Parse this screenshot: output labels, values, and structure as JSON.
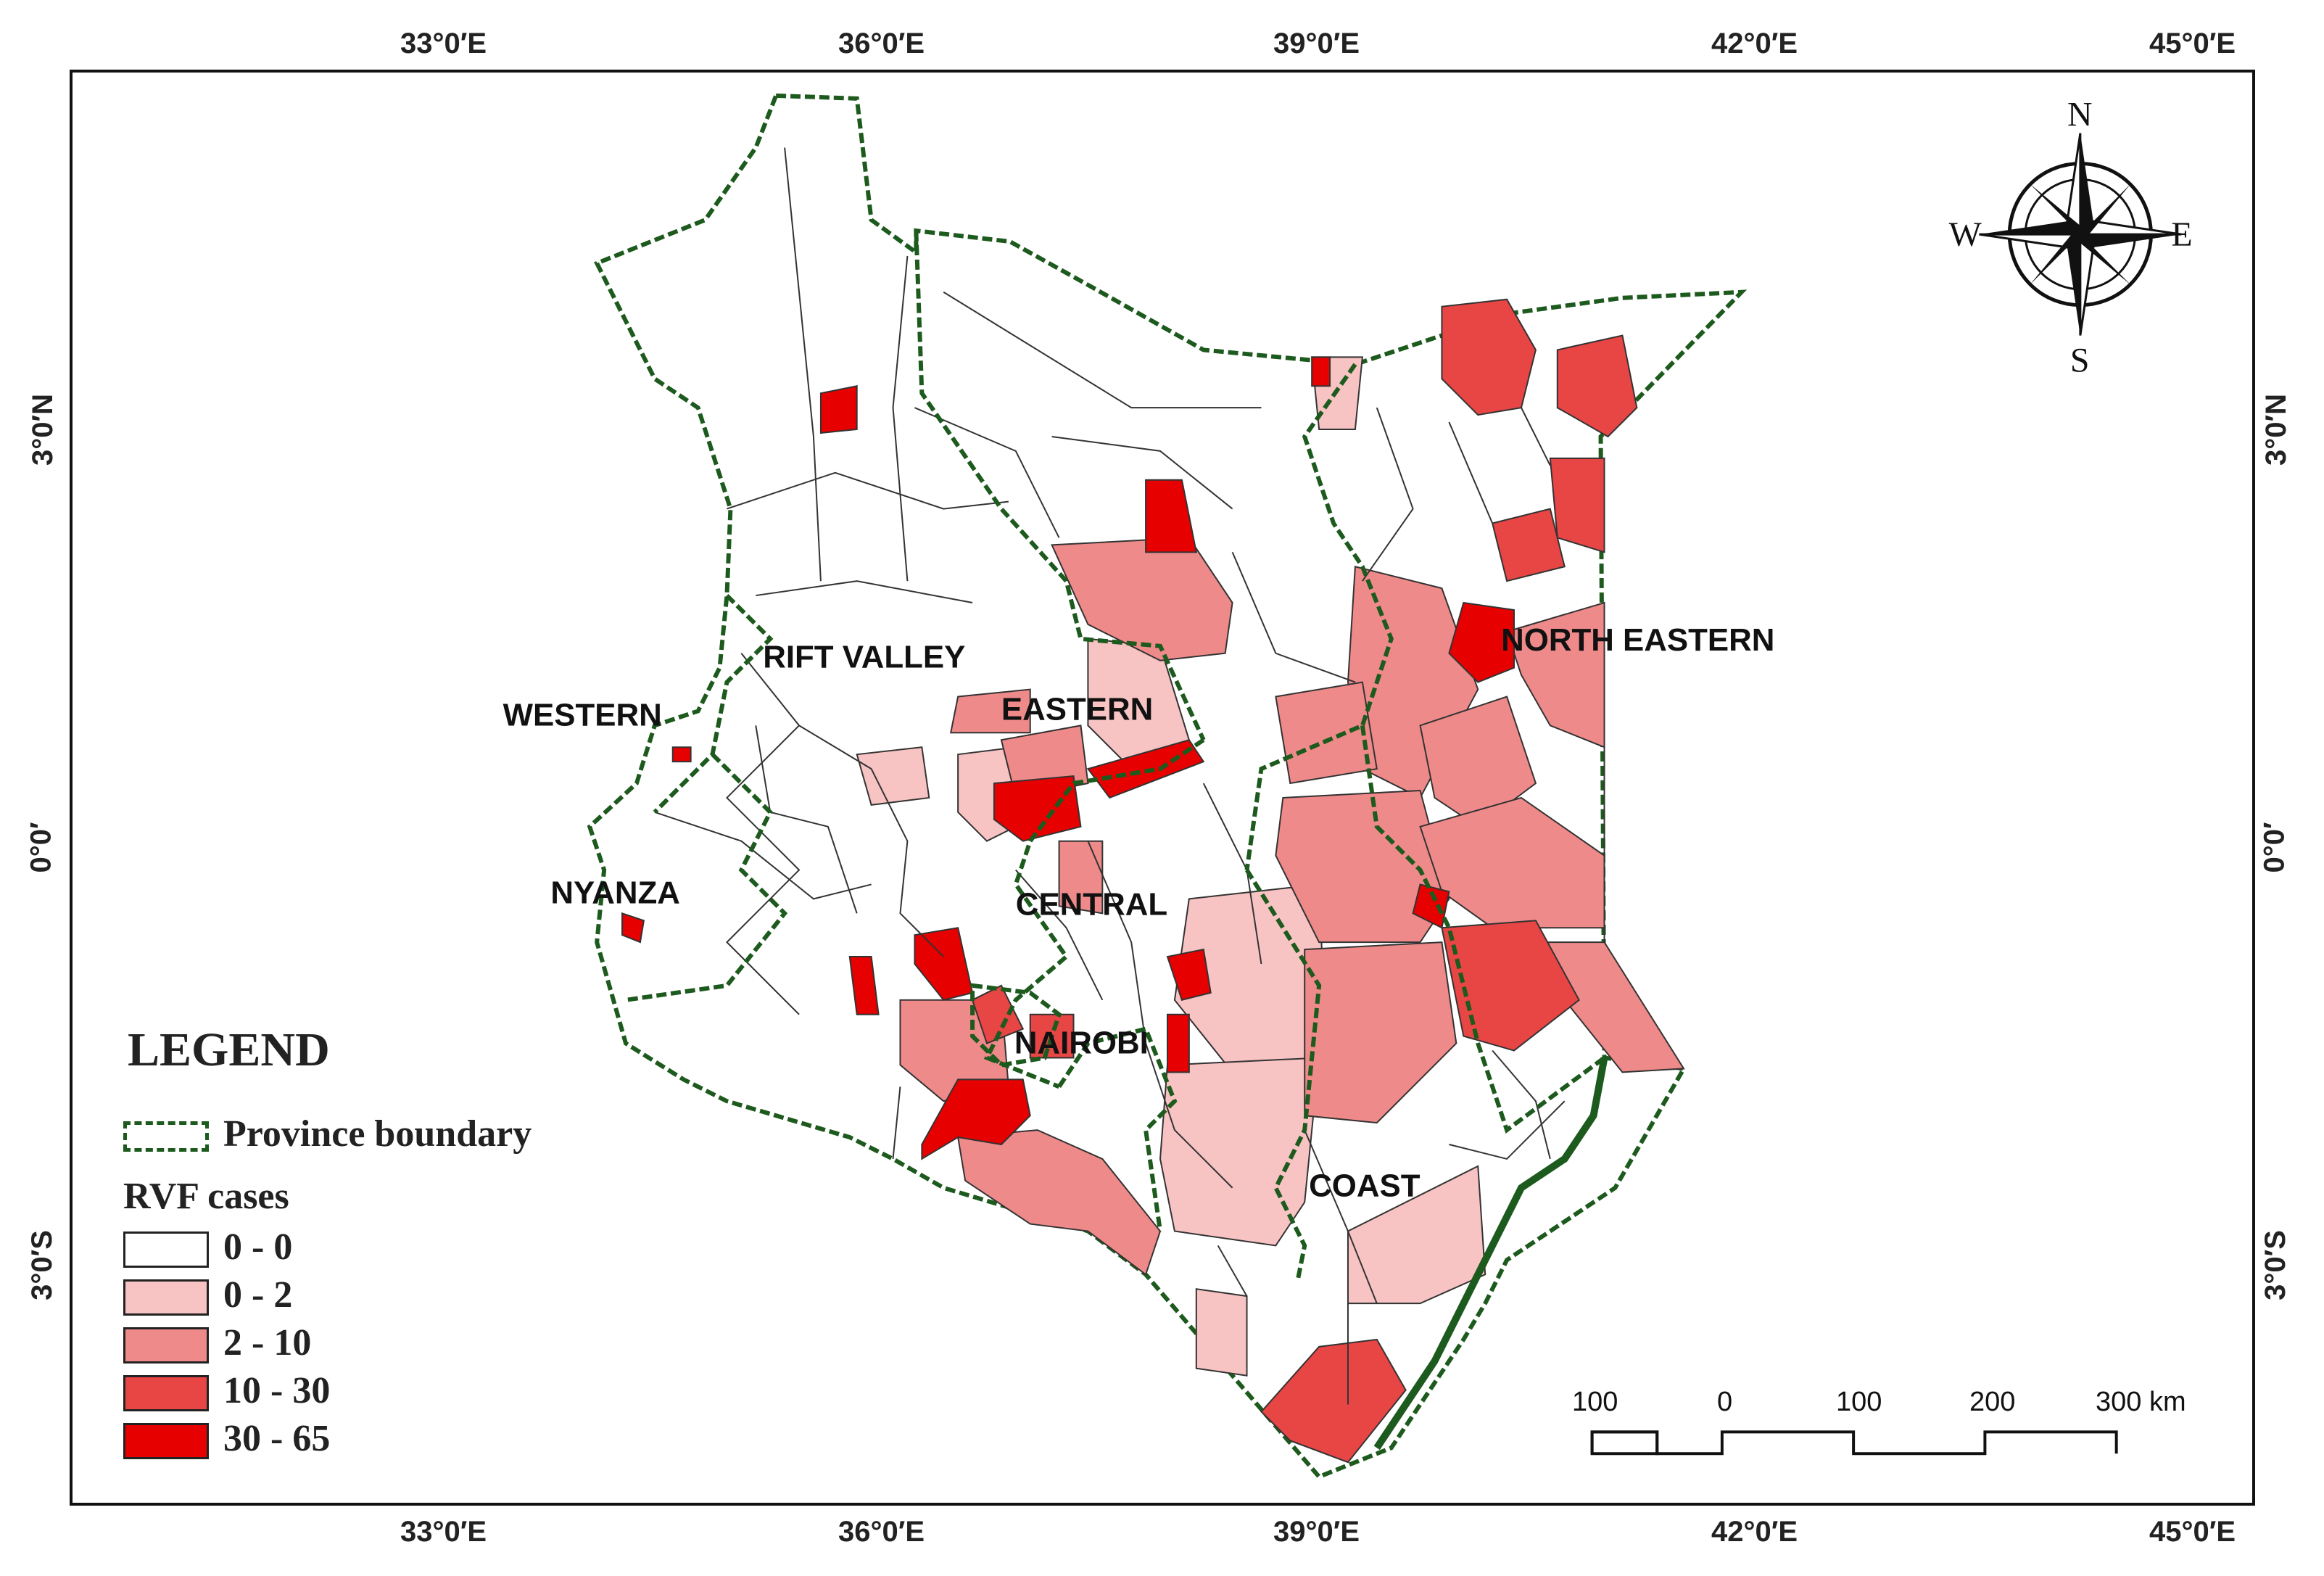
{
  "axis_labels": {
    "lon": [
      "33°0′E",
      "36°0′E",
      "39°0′E",
      "42°0′E",
      "45°0′E"
    ],
    "lat": [
      "3°0′N",
      "0°0′",
      "3°0′S"
    ]
  },
  "compass": {
    "north": "N",
    "south": "S",
    "east": "E",
    "west": "W"
  },
  "provinces": {
    "rift_valley": "RIFT VALLEY",
    "western": "WESTERN",
    "eastern": "EASTERN",
    "north_eastern": "NORTH EASTERN",
    "nyanza": "NYANZA",
    "central": "CENTRAL",
    "nairobi": "NAIROBI",
    "coast": "COAST"
  },
  "legend": {
    "title": "LEGEND",
    "boundary_label": "Province boundary",
    "cases_title": "RVF cases",
    "classes": [
      {
        "label": "0 - 0",
        "color": "#ffffff"
      },
      {
        "label": "0 - 2",
        "color": "#f7c3c3"
      },
      {
        "label": "2 - 10",
        "color": "#ef8a8a"
      },
      {
        "label": "10 - 30",
        "color": "#e84545"
      },
      {
        "label": "30 - 65",
        "color": "#e60000"
      }
    ]
  },
  "scale_bar": {
    "labels": [
      "100",
      "0",
      "100",
      "200",
      "300 km"
    ]
  },
  "colors": {
    "boundary": "#1d5a1d",
    "district_line": "#333333"
  }
}
